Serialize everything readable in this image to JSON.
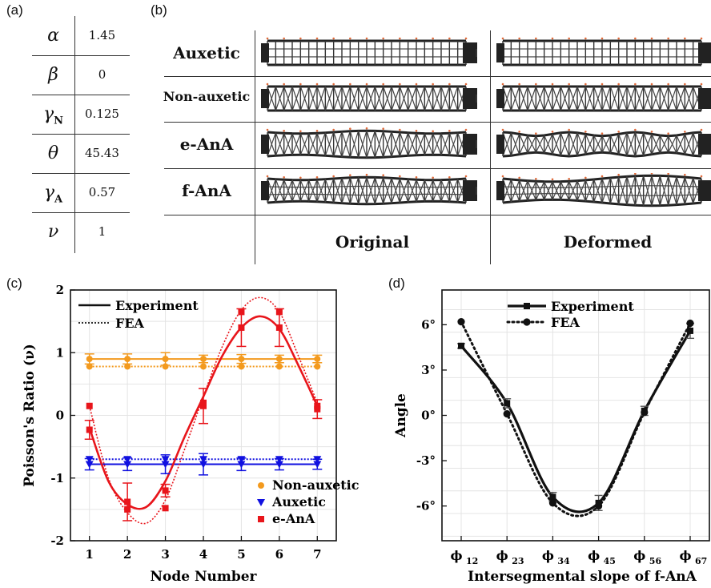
{
  "panel_labels": {
    "a": "(a)",
    "b": "(b)",
    "c": "(c)",
    "d": "(d)"
  },
  "param_table": [
    {
      "symbol": "α",
      "sub": "",
      "value": "1.45"
    },
    {
      "symbol": "β",
      "sub": "",
      "value": "0"
    },
    {
      "symbol": "γ",
      "sub": "N",
      "value": "0.125"
    },
    {
      "symbol": "θ",
      "sub": "",
      "value": "45.43"
    },
    {
      "symbol": "γ",
      "sub": "A",
      "value": "0.57"
    },
    {
      "symbol": "ν",
      "sub": "",
      "value": "1"
    }
  ],
  "lattice_panel": {
    "rows": [
      "Auxetic",
      "Non-auxetic",
      "e-AnA",
      "f-AnA"
    ],
    "columns": [
      "Original",
      "Deformed"
    ]
  },
  "chart_data": [
    {
      "type": "scatter",
      "xlabel": "Node Number",
      "ylabel": "Poisson's Ratio (ν)",
      "xlim": [
        0.5,
        7.5
      ],
      "ylim": [
        -2,
        2
      ],
      "xticks": [
        "1",
        "2",
        "3",
        "4",
        "5",
        "6",
        "7"
      ],
      "yticks": [
        "-2",
        "-1",
        "0",
        "1",
        "2"
      ],
      "line_legend": [
        "Experiment",
        "FEA"
      ],
      "series": [
        {
          "name": "Non-auxetic",
          "color": "#f39a1e",
          "marker": "circle",
          "x": [
            1,
            2,
            3,
            4,
            5,
            6,
            7
          ],
          "values": [
            0.9,
            0.9,
            0.9,
            0.9,
            0.9,
            0.9,
            0.9
          ],
          "err": [
            0.08,
            0.08,
            0.1,
            0.06,
            0.07,
            0.06,
            0.06
          ],
          "fea": [
            0.78,
            0.78,
            0.78,
            0.78,
            0.78,
            0.78,
            0.78
          ]
        },
        {
          "name": "Auxetic",
          "color": "#1010e0",
          "marker": "triangle-down",
          "x": [
            1,
            2,
            3,
            4,
            5,
            6,
            7
          ],
          "values": [
            -0.78,
            -0.78,
            -0.78,
            -0.78,
            -0.78,
            -0.78,
            -0.78
          ],
          "err": [
            0.09,
            0.1,
            0.15,
            0.17,
            0.1,
            0.09,
            0.08
          ],
          "fea": [
            -0.7,
            -0.7,
            -0.7,
            -0.7,
            -0.7,
            -0.7,
            -0.7
          ]
        },
        {
          "name": "e-AnA",
          "color": "#e8151b",
          "marker": "square",
          "x": [
            1,
            2,
            3,
            4,
            5,
            6,
            7
          ],
          "values": [
            -0.23,
            -1.38,
            -1.2,
            0.15,
            1.4,
            1.4,
            0.1
          ],
          "err": [
            0.15,
            0.3,
            0.1,
            0.28,
            0.3,
            0.3,
            0.15
          ],
          "fea": [
            0.15,
            -1.5,
            -1.48,
            0.2,
            1.65,
            1.65,
            0.15
          ]
        }
      ],
      "fit_experiment": {
        "x": [
          1,
          1.5,
          2,
          2.5,
          3,
          3.5,
          4,
          4.5,
          5,
          5.5,
          6,
          6.5,
          7
        ],
        "y": [
          -0.2,
          -1.05,
          -1.42,
          -1.46,
          -1.05,
          -0.35,
          0.3,
          0.95,
          1.4,
          1.58,
          1.38,
          0.8,
          0.15
        ]
      },
      "fit_fea": {
        "x": [
          1,
          1.5,
          2,
          2.5,
          3,
          3.5,
          4,
          4.5,
          5,
          5.5,
          6,
          6.5,
          7
        ],
        "y": [
          0.15,
          -1.0,
          -1.55,
          -1.72,
          -1.35,
          -0.55,
          0.3,
          1.1,
          1.68,
          1.88,
          1.65,
          0.95,
          0.2
        ]
      }
    },
    {
      "type": "line",
      "xlabel": "Intersegmental slope of f-AnA",
      "ylabel": "Angle",
      "categories": [
        "ϕ12",
        "ϕ23",
        "ϕ34",
        "ϕ45",
        "ϕ56",
        "ϕ67"
      ],
      "cat_main": [
        "ϕ",
        "ϕ",
        "ϕ",
        "ϕ",
        "ϕ",
        "ϕ"
      ],
      "cat_sub": [
        "12",
        "23",
        "34",
        "45",
        "56",
        "67"
      ],
      "yticks": [
        "6°",
        "3°",
        "0°",
        "-3°",
        "-6°"
      ],
      "ytick_values": [
        6,
        3,
        0,
        -3,
        -6
      ],
      "ylim": [
        -8.3,
        8.3
      ],
      "series": [
        {
          "name": "Experiment",
          "marker": "square",
          "style": "solid",
          "values": [
            4.6,
            0.8,
            -5.4,
            -5.8,
            0.3,
            5.6
          ],
          "err": [
            0.15,
            0.3,
            0.3,
            0.5,
            0.3,
            0.5
          ]
        },
        {
          "name": "FEA",
          "marker": "circle",
          "style": "dotted",
          "values": [
            6.2,
            0.1,
            -5.8,
            -6.0,
            0.2,
            6.1
          ]
        }
      ]
    }
  ]
}
